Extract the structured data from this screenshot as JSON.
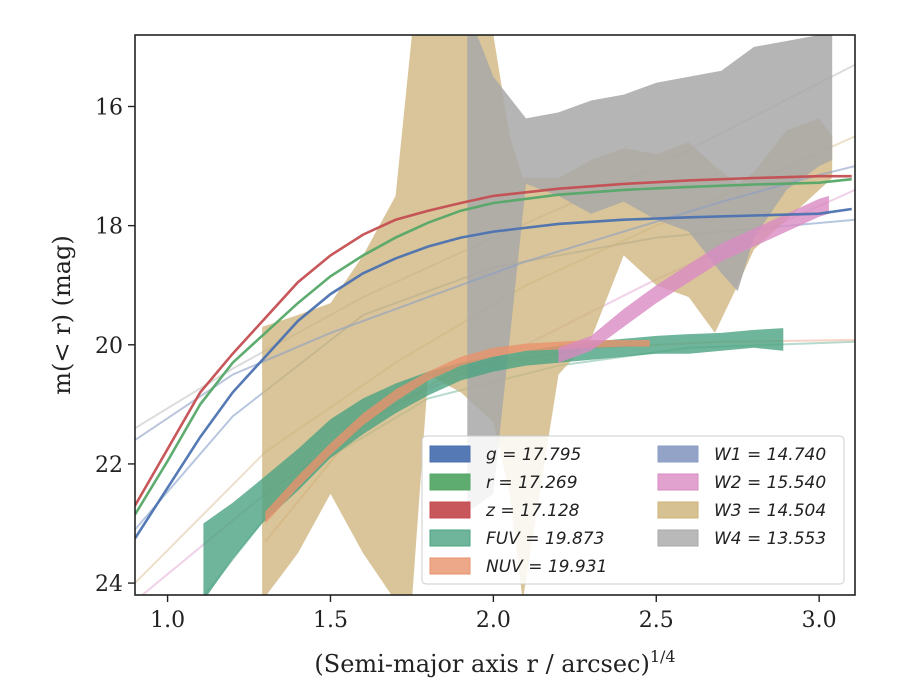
{
  "chart_data": {
    "type": "line",
    "xlabel": "(Semi-major axis r / arcsec)",
    "xlabel_exponent": "1/4",
    "ylabel": "m(< r) (mag)",
    "xlim": [
      0.9,
      3.11
    ],
    "ylim": [
      24.2,
      14.8
    ],
    "y_inverted": true,
    "x_ticks": [
      "1.0",
      "1.5",
      "2.0",
      "2.5",
      "3.0"
    ],
    "y_ticks": [
      "16",
      "18",
      "20",
      "22",
      "24"
    ],
    "grid": false,
    "legend_placement": "lower-right",
    "legend_columns": 2,
    "series": [
      {
        "name": "g = 17.795",
        "color": "#4c72b0",
        "kind": "line",
        "x": [
          0.9,
          1.0,
          1.1,
          1.2,
          1.3,
          1.4,
          1.5,
          1.6,
          1.7,
          1.8,
          1.9,
          2.0,
          2.2,
          2.4,
          2.6,
          2.8,
          3.0,
          3.1
        ],
        "y": [
          23.25,
          22.4,
          21.55,
          20.8,
          20.2,
          19.6,
          19.15,
          18.8,
          18.55,
          18.35,
          18.2,
          18.1,
          17.97,
          17.9,
          17.86,
          17.83,
          17.8,
          17.72
        ]
      },
      {
        "name": "r = 17.269",
        "color": "#55a868",
        "kind": "line",
        "x": [
          0.9,
          1.0,
          1.1,
          1.2,
          1.3,
          1.4,
          1.5,
          1.6,
          1.7,
          1.8,
          1.9,
          2.0,
          2.2,
          2.4,
          2.6,
          2.8,
          3.0,
          3.1
        ],
        "y": [
          22.85,
          21.95,
          21.0,
          20.3,
          19.8,
          19.3,
          18.85,
          18.5,
          18.2,
          17.95,
          17.75,
          17.62,
          17.48,
          17.4,
          17.35,
          17.31,
          17.28,
          17.22
        ]
      },
      {
        "name": "z = 17.128",
        "color": "#c44e52",
        "kind": "line",
        "x": [
          0.9,
          1.0,
          1.1,
          1.2,
          1.3,
          1.4,
          1.5,
          1.6,
          1.7,
          1.8,
          1.9,
          2.0,
          2.2,
          2.4,
          2.6,
          2.8,
          3.0,
          3.1
        ],
        "y": [
          22.7,
          21.75,
          20.8,
          20.15,
          19.55,
          18.95,
          18.5,
          18.15,
          17.9,
          17.75,
          17.62,
          17.5,
          17.38,
          17.3,
          17.24,
          17.2,
          17.17,
          17.17
        ]
      },
      {
        "name": "FUV = 19.873",
        "color": "#4ba382",
        "kind": "band",
        "x": [
          1.11,
          1.2,
          1.29,
          1.4,
          1.5,
          1.6,
          1.7,
          1.8,
          1.9,
          2.0,
          2.1,
          2.2,
          2.3,
          2.4,
          2.5,
          2.6,
          2.7,
          2.8,
          2.89
        ],
        "y_low": [
          24.3,
          23.6,
          23.0,
          22.45,
          21.9,
          21.5,
          21.15,
          20.85,
          20.6,
          20.45,
          20.35,
          20.3,
          20.25,
          20.2,
          20.15,
          20.15,
          20.1,
          20.05,
          20.1
        ],
        "y_high": [
          23.0,
          22.65,
          22.25,
          21.75,
          21.25,
          20.9,
          20.65,
          20.45,
          20.3,
          20.2,
          20.1,
          20.02,
          19.95,
          19.9,
          19.85,
          19.82,
          19.8,
          19.75,
          19.72
        ]
      },
      {
        "name": "NUV = 19.931",
        "color": "#e8926b",
        "kind": "band",
        "x": [
          1.3,
          1.4,
          1.5,
          1.6,
          1.7,
          1.8,
          1.9,
          2.0,
          2.1,
          2.2,
          2.3,
          2.4,
          2.48
        ],
        "y_low": [
          23.0,
          22.4,
          21.85,
          21.35,
          20.95,
          20.6,
          20.35,
          20.2,
          20.1,
          20.08,
          20.05,
          20.03,
          20.03
        ],
        "y_high": [
          22.8,
          22.2,
          21.65,
          21.15,
          20.75,
          20.45,
          20.2,
          20.05,
          19.98,
          19.95,
          19.92,
          19.92,
          19.92
        ]
      },
      {
        "name": "W1 = 14.740",
        "color": "#8c9ec4",
        "kind": "line",
        "x": [
          0.9,
          1.2,
          1.5,
          1.8,
          2.1,
          2.4,
          2.7,
          3.0,
          3.11
        ],
        "y": [
          21.6,
          20.5,
          19.8,
          19.2,
          18.6,
          18.1,
          17.6,
          17.15,
          17.0
        ]
      },
      {
        "name": "W2 = 15.540",
        "color": "#da8bc3",
        "kind": "band",
        "x": [
          2.2,
          2.3,
          2.4,
          2.5,
          2.6,
          2.7,
          2.8,
          2.9,
          3.0,
          3.03
        ],
        "y_low": [
          20.3,
          20.1,
          19.7,
          19.3,
          18.95,
          18.6,
          18.35,
          18.1,
          17.85,
          17.8
        ],
        "y_high": [
          20.05,
          19.85,
          19.4,
          19.0,
          18.65,
          18.3,
          18.05,
          17.8,
          17.55,
          17.5
        ]
      },
      {
        "name": "W3 = 14.504",
        "color": "#ccb277",
        "kind": "band",
        "x": [
          1.29,
          1.4,
          1.5,
          1.6,
          1.7,
          1.75,
          1.8,
          1.9,
          2.0,
          2.05,
          2.09,
          2.2,
          2.3,
          2.4,
          2.5,
          2.6,
          2.68,
          2.75,
          2.8,
          2.9,
          3.0,
          3.04
        ],
        "y_low": [
          24.3,
          23.5,
          22.5,
          23.5,
          24.3,
          24.3,
          20.5,
          20.8,
          21.3,
          22.5,
          24.3,
          20.5,
          19.9,
          18.5,
          19.0,
          19.2,
          19.8,
          19.0,
          18.4,
          17.9,
          17.4,
          17.2
        ],
        "y_high": [
          19.7,
          19.5,
          19.3,
          18.5,
          17.5,
          14.8,
          14.8,
          14.8,
          14.8,
          16.5,
          17.2,
          17.2,
          16.9,
          16.7,
          16.8,
          16.6,
          17.0,
          17.3,
          17.1,
          16.4,
          16.2,
          16.5
        ]
      },
      {
        "name": "W4 = 13.553",
        "color": "#a8a8a8",
        "kind": "band",
        "x": [
          1.92,
          1.95,
          2.0,
          2.1,
          2.2,
          2.3,
          2.4,
          2.5,
          2.6,
          2.7,
          2.75,
          2.8,
          2.9,
          3.0,
          3.04
        ],
        "y_low": [
          22.8,
          22.7,
          22.5,
          17.3,
          17.5,
          17.8,
          17.6,
          17.9,
          18.1,
          18.8,
          19.1,
          18.2,
          17.4,
          17.0,
          16.9
        ],
        "y_high": [
          14.8,
          14.8,
          15.5,
          16.2,
          16.1,
          15.9,
          15.8,
          15.6,
          15.5,
          15.4,
          15.2,
          15.0,
          14.9,
          14.8,
          14.8
        ]
      }
    ],
    "faint_models": [
      {
        "color": "#4c72b0",
        "x": [
          0.9,
          1.2,
          1.6,
          2.0,
          2.5,
          3.11
        ],
        "y": [
          23.1,
          21.2,
          19.5,
          18.7,
          18.2,
          17.9
        ]
      },
      {
        "color": "#4ba382",
        "x": [
          1.1,
          1.4,
          1.8,
          2.2,
          2.6,
          3.11
        ],
        "y": [
          24.3,
          22.2,
          20.9,
          20.35,
          20.05,
          19.95
        ]
      },
      {
        "color": "#e8926b",
        "x": [
          1.3,
          1.6,
          1.9,
          2.3,
          2.7,
          3.11
        ],
        "y": [
          23.3,
          21.3,
          20.4,
          20.05,
          19.95,
          19.92
        ]
      },
      {
        "color": "#da8bc3",
        "x": [
          0.9,
          1.3,
          1.7,
          2.1,
          2.5,
          3.11
        ],
        "y": [
          24.3,
          22.5,
          21.0,
          20.0,
          18.9,
          17.4
        ]
      },
      {
        "color": "#ccb277",
        "x": [
          0.9,
          1.3,
          1.7,
          2.1,
          2.5,
          3.11
        ],
        "y": [
          24.0,
          21.8,
          20.3,
          19.0,
          18.0,
          16.5
        ]
      },
      {
        "color": "#a8a8a8",
        "x": [
          0.9,
          1.2,
          1.6,
          2.0,
          2.5,
          3.11
        ],
        "y": [
          21.4,
          20.4,
          19.2,
          18.2,
          17.0,
          15.3
        ]
      }
    ]
  }
}
